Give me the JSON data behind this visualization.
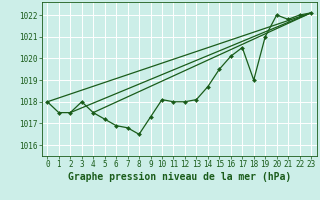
{
  "xlabel": "Graphe pression niveau de la mer (hPa)",
  "background_color": "#cceee8",
  "grid_color": "#ffffff",
  "line_color": "#1a5c1a",
  "marker_color": "#1a5c1a",
  "ylim": [
    1015.5,
    1022.6
  ],
  "xlim": [
    -0.5,
    23.5
  ],
  "yticks": [
    1016,
    1017,
    1018,
    1019,
    1020,
    1021,
    1022
  ],
  "xticks": [
    0,
    1,
    2,
    3,
    4,
    5,
    6,
    7,
    8,
    9,
    10,
    11,
    12,
    13,
    14,
    15,
    16,
    17,
    18,
    19,
    20,
    21,
    22,
    23
  ],
  "data_x": [
    0,
    1,
    2,
    3,
    4,
    5,
    6,
    7,
    8,
    9,
    10,
    11,
    12,
    13,
    14,
    15,
    16,
    17,
    18,
    19,
    20,
    21,
    22,
    23
  ],
  "data_y": [
    1018.0,
    1017.5,
    1017.5,
    1018.0,
    1017.5,
    1017.2,
    1016.9,
    1016.8,
    1016.5,
    1017.3,
    1018.1,
    1018.0,
    1018.0,
    1018.1,
    1018.7,
    1019.5,
    1020.1,
    1020.5,
    1019.0,
    1021.0,
    1022.0,
    1021.8,
    1022.0,
    1022.1
  ],
  "line1_x": [
    0,
    23
  ],
  "line1_y": [
    1018.0,
    1022.1
  ],
  "line2_x": [
    2,
    23
  ],
  "line2_y": [
    1017.5,
    1022.1
  ],
  "line3_x": [
    4,
    23
  ],
  "line3_y": [
    1017.5,
    1022.1
  ],
  "font_color": "#1a5c1a",
  "xlabel_fontsize": 7,
  "tick_fontsize": 5.5
}
